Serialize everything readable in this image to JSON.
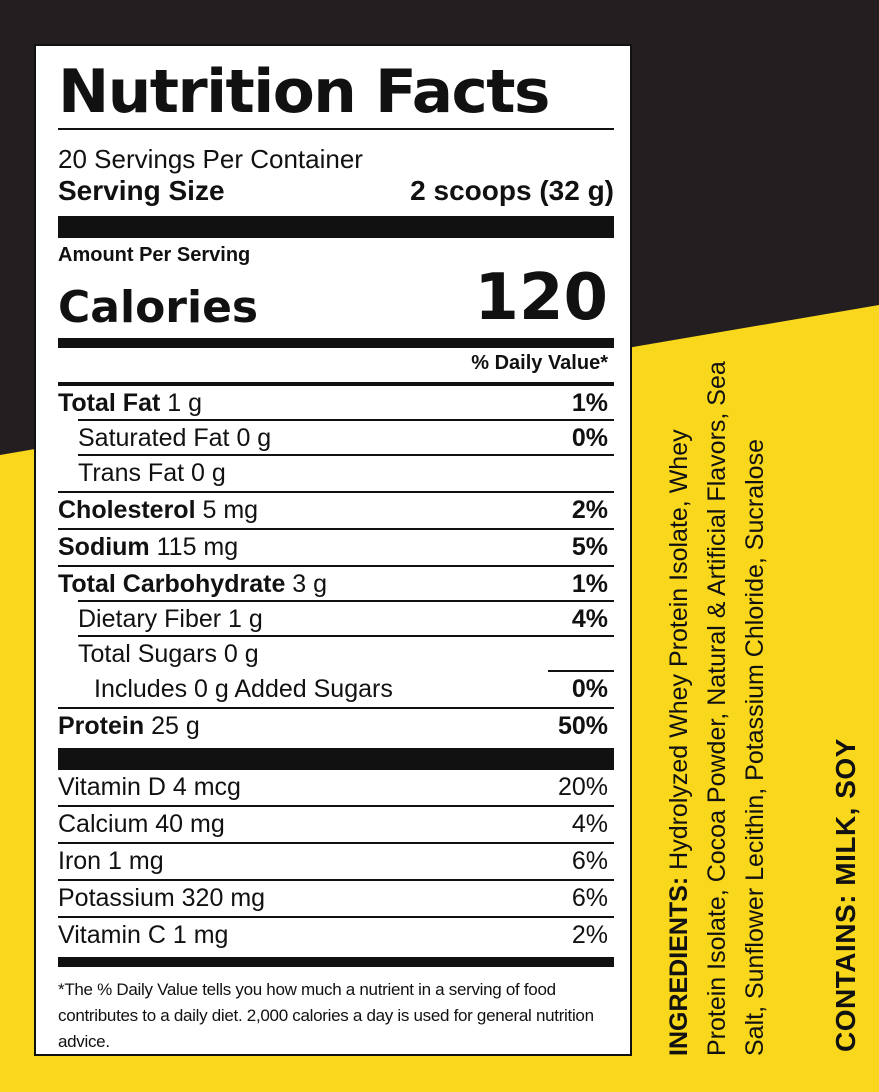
{
  "colors": {
    "dark": "#231f20",
    "yellow": "#f9d71c",
    "ink": "#111111"
  },
  "title": "Nutrition Facts",
  "servings_per_container": "20 Servings Per Container",
  "serving_size_label": "Serving Size",
  "serving_size_value": "2 scoops (32 g)",
  "amount_per_serving": "Amount Per Serving",
  "calories_label": "Calories",
  "calories_value": "120",
  "daily_value_header": "% Daily Value*",
  "nutrients": [
    {
      "name": "Total Fat",
      "amount": "1 g",
      "dv": "1%"
    },
    {
      "name": "Saturated Fat",
      "amount": "0 g",
      "dv": "0%"
    },
    {
      "name": "Trans Fat",
      "amount": "0 g",
      "dv": ""
    },
    {
      "name": "Cholesterol",
      "amount": "5 mg",
      "dv": "2%"
    },
    {
      "name": "Sodium",
      "amount": "115 mg",
      "dv": "5%"
    },
    {
      "name": "Total Carbohydrate",
      "amount": "3 g",
      "dv": "1%"
    },
    {
      "name": "Dietary Fiber",
      "amount": "1 g",
      "dv": "4%"
    },
    {
      "name": "Total Sugars",
      "amount": "0 g",
      "dv": ""
    },
    {
      "name": "Includes 0 g Added Sugars",
      "amount": "",
      "dv": "0%"
    },
    {
      "name": "Protein",
      "amount": "25 g",
      "dv": "50%"
    }
  ],
  "vitamins": [
    {
      "name": "Vitamin D 4 mcg",
      "dv": "20%"
    },
    {
      "name": "Calcium 40 mg",
      "dv": "4%"
    },
    {
      "name": "Iron 1 mg",
      "dv": "6%"
    },
    {
      "name": "Potassium 320 mg",
      "dv": "6%"
    },
    {
      "name": "Vitamin C 1 mg",
      "dv": "2%"
    }
  ],
  "footnote": "*The % Daily Value tells you how much a nutrient in a serving of food contributes to a daily diet. 2,000 calories a day is used for general nutrition advice.",
  "ingredients_label": "INGREDIENTS:",
  "ingredients_text": "Hydrolyzed Whey Protein Isolate, Whey Protein Isolate, Cocoa Powder, Natural & Artificial Flavors, Sea Salt, Sunflower Lecithin, Potassium Chloride, Sucralose",
  "contains": "CONTAINS: MILK, SOY"
}
